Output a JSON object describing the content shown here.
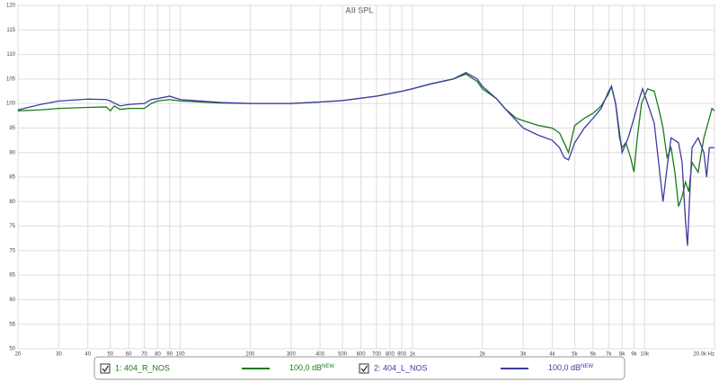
{
  "chart_data": {
    "type": "line",
    "title": "All SPL",
    "xscale": "log",
    "grid": true,
    "xlim": [
      20,
      20000
    ],
    "ylim": [
      50,
      120
    ],
    "xticks": [
      20,
      30,
      40,
      50,
      60,
      70,
      80,
      90,
      100,
      200,
      300,
      400,
      500,
      600,
      700,
      800,
      900,
      {
        "value": 1000,
        "label": "1k"
      },
      {
        "value": 2000,
        "label": "2k"
      },
      {
        "value": 3000,
        "label": "3k"
      },
      {
        "value": 4000,
        "label": "4k"
      },
      {
        "value": 5000,
        "label": "5k"
      },
      {
        "value": 6000,
        "label": "6k"
      },
      {
        "value": 7000,
        "label": "7k"
      },
      {
        "value": 8000,
        "label": "8k"
      },
      {
        "value": 9000,
        "label": "9k"
      },
      {
        "value": 10000,
        "label": "10k"
      },
      {
        "value": 20000,
        "label": "20.0k Hz"
      }
    ],
    "yticks": [
      50,
      55,
      60,
      65,
      70,
      75,
      80,
      85,
      90,
      95,
      100,
      105,
      110,
      115,
      120
    ],
    "series": [
      {
        "name": "1: 404_R_NOS",
        "color": "#1a7a1a",
        "legend_value": "100,0 dB",
        "legend_tag": "NEW",
        "x": [
          20,
          25,
          30,
          40,
          48,
          50,
          52,
          55,
          60,
          70,
          75,
          80,
          90,
          100,
          150,
          200,
          300,
          400,
          500,
          700,
          900,
          1000,
          1200,
          1500,
          1700,
          1900,
          2000,
          2300,
          2500,
          2800,
          3000,
          3500,
          4000,
          4300,
          4500,
          4700,
          5000,
          5500,
          6000,
          6500,
          7000,
          7200,
          7500,
          7800,
          8000,
          8300,
          8700,
          9000,
          9300,
          9700,
          10300,
          11000,
          11500,
          12000,
          12500,
          13000,
          13500,
          14000,
          14500,
          15000,
          15500,
          16000,
          17000,
          18000,
          19000,
          19500,
          20000
        ],
        "values": [
          98.5,
          98.7,
          99,
          99.2,
          99.3,
          98.5,
          99.5,
          98.8,
          99,
          99,
          100,
          100.5,
          100.8,
          100.5,
          100.1,
          100,
          100,
          100.3,
          100.6,
          101.5,
          102.5,
          103,
          104,
          105,
          106,
          104.5,
          103,
          101,
          99,
          97,
          96.5,
          95.5,
          95,
          94,
          92,
          90,
          95.5,
          97,
          98,
          99.5,
          102,
          103.5,
          100,
          93,
          91,
          92,
          89,
          86,
          93,
          100,
          103,
          102.5,
          99,
          95,
          89,
          91,
          86,
          79,
          81,
          84,
          82,
          88,
          86,
          93,
          97,
          99,
          98.5
        ]
      },
      {
        "name": "2: 404_L_NOS",
        "color": "#3c3ca0",
        "legend_value": "100,0 dB",
        "legend_tag": "NEW",
        "x": [
          20,
          25,
          30,
          40,
          48,
          50,
          55,
          60,
          70,
          75,
          80,
          90,
          100,
          150,
          200,
          300,
          400,
          500,
          700,
          900,
          1000,
          1200,
          1500,
          1700,
          1900,
          2000,
          2300,
          2500,
          2800,
          3000,
          3500,
          4000,
          4300,
          4500,
          4700,
          5000,
          5500,
          6000,
          6500,
          7000,
          7200,
          7500,
          7800,
          8000,
          8500,
          9000,
          9500,
          9800,
          10300,
          11000,
          12000,
          12500,
          13000,
          14000,
          14500,
          15000,
          15300,
          15600,
          16000,
          17000,
          18000,
          18500,
          19000,
          20000
        ],
        "values": [
          98.7,
          99.8,
          100.5,
          100.9,
          100.8,
          100.5,
          99.5,
          99.8,
          100,
          100.8,
          101,
          101.5,
          100.8,
          100.2,
          100,
          100,
          100.3,
          100.6,
          101.5,
          102.5,
          103,
          104,
          105,
          106.3,
          105,
          103.5,
          101,
          99,
          96.5,
          95,
          93.5,
          92.5,
          91,
          89,
          88.5,
          92,
          95,
          97,
          99,
          102.5,
          103.5,
          100,
          94,
          90,
          93,
          97,
          101,
          103,
          100,
          96,
          80,
          87,
          93,
          92,
          88,
          76,
          71,
          80,
          91,
          93,
          90,
          85,
          91,
          91
        ]
      }
    ]
  }
}
